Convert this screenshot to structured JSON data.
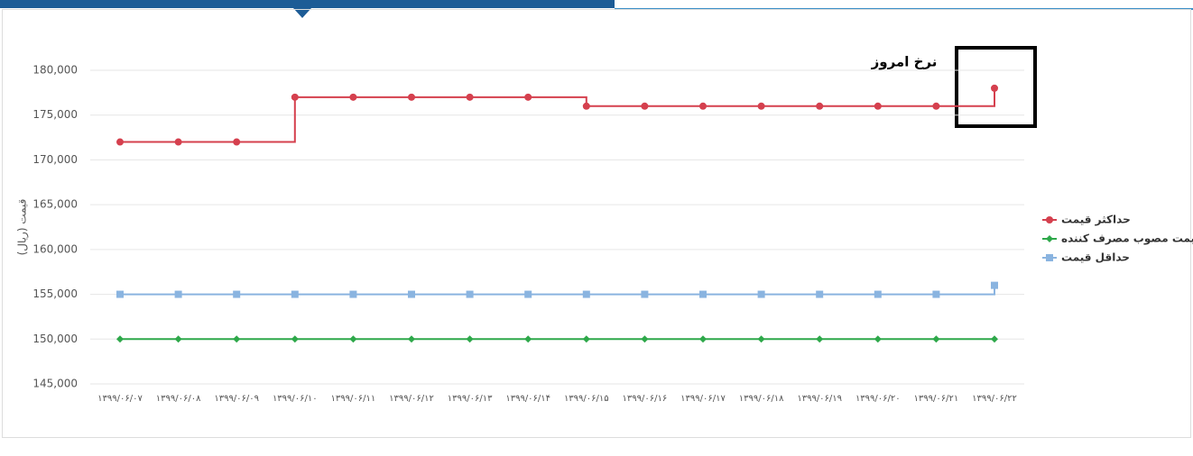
{
  "chart_data": {
    "type": "line",
    "step": "after",
    "y_label": "قیمت (ریال)",
    "annotation": "نرخ امروز",
    "categories": [
      "۱۳۹۹/۰۶/۰۷",
      "۱۳۹۹/۰۶/۰۸",
      "۱۳۹۹/۰۶/۰۹",
      "۱۳۹۹/۰۶/۱۰",
      "۱۳۹۹/۰۶/۱۱",
      "۱۳۹۹/۰۶/۱۲",
      "۱۳۹۹/۰۶/۱۳",
      "۱۳۹۹/۰۶/۱۴",
      "۱۳۹۹/۰۶/۱۵",
      "۱۳۹۹/۰۶/۱۶",
      "۱۳۹۹/۰۶/۱۷",
      "۱۳۹۹/۰۶/۱۸",
      "۱۳۹۹/۰۶/۱۹",
      "۱۳۹۹/۰۶/۲۰",
      "۱۳۹۹/۰۶/۲۱",
      "۱۳۹۹/۰۶/۲۲"
    ],
    "series": [
      {
        "name": "حداکثر قیمت",
        "color": "#d5404e",
        "marker": "circle",
        "values": [
          172000,
          172000,
          172000,
          177000,
          177000,
          177000,
          177000,
          177000,
          176000,
          176000,
          176000,
          176000,
          176000,
          176000,
          176000,
          178000
        ]
      },
      {
        "name": "قیمت مصوب مصرف کننده",
        "color": "#2ea84a",
        "marker": "diamond",
        "values": [
          150000,
          150000,
          150000,
          150000,
          150000,
          150000,
          150000,
          150000,
          150000,
          150000,
          150000,
          150000,
          150000,
          150000,
          150000,
          150000
        ]
      },
      {
        "name": "حداقل قیمت",
        "color": "#8ab4e0",
        "marker": "square",
        "values": [
          155000,
          155000,
          155000,
          155000,
          155000,
          155000,
          155000,
          155000,
          155000,
          155000,
          155000,
          155000,
          155000,
          155000,
          155000,
          156000
        ]
      }
    ],
    "ylim": [
      145000,
      180000
    ],
    "yticks": [
      {
        "value": 145000,
        "label": "145,000"
      },
      {
        "value": 150000,
        "label": "150,000"
      },
      {
        "value": 155000,
        "label": "155,000"
      },
      {
        "value": 160000,
        "label": "160,000"
      },
      {
        "value": 165000,
        "label": "165,000"
      },
      {
        "value": 170000,
        "label": "170,000"
      },
      {
        "value": 175000,
        "label": "175,000"
      },
      {
        "value": 180000,
        "label": "180,000"
      }
    ],
    "grid": true,
    "legend": "right"
  }
}
